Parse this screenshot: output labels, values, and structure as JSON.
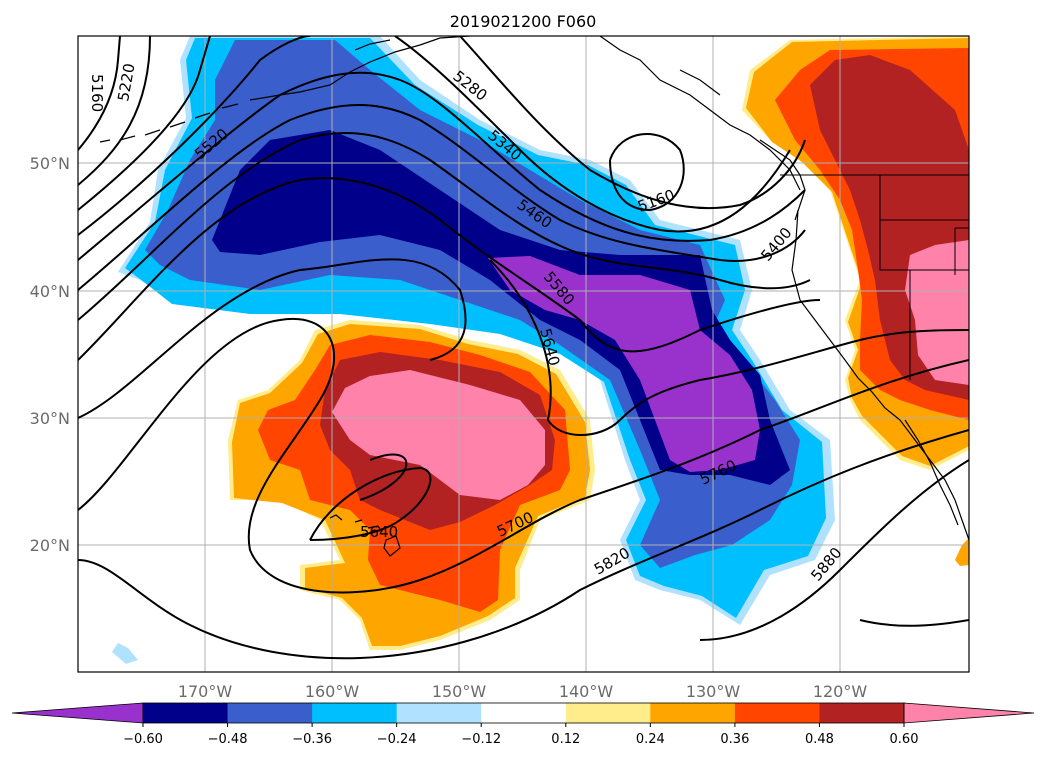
{
  "title": "2019021200 F060",
  "lon_labels": [
    "170°W",
    "160°W",
    "150°W",
    "140°W",
    "130°W",
    "120°W"
  ],
  "lat_labels": [
    "50°N",
    "40°N",
    "30°N",
    "20°N"
  ],
  "colorbar": {
    "ticks": [
      "−0.60",
      "−0.48",
      "−0.36",
      "−0.24",
      "−0.12",
      "0.12",
      "0.24",
      "0.36",
      "0.48",
      "0.60"
    ],
    "colors": [
      "#9932cc",
      "#00008b",
      "#3a5fcd",
      "#00bfff",
      "#b0e2ff",
      "#ffffff",
      "#ffec8b",
      "#ffa500",
      "#ff4500",
      "#b22222",
      "#ff82ab"
    ]
  },
  "contour_labels": [
    "5160",
    "5220",
    "5280",
    "5340",
    "5520",
    "5460",
    "5160",
    "5400",
    "5580",
    "5640",
    "5760",
    "5700",
    "5640",
    "5820",
    "5880"
  ]
}
